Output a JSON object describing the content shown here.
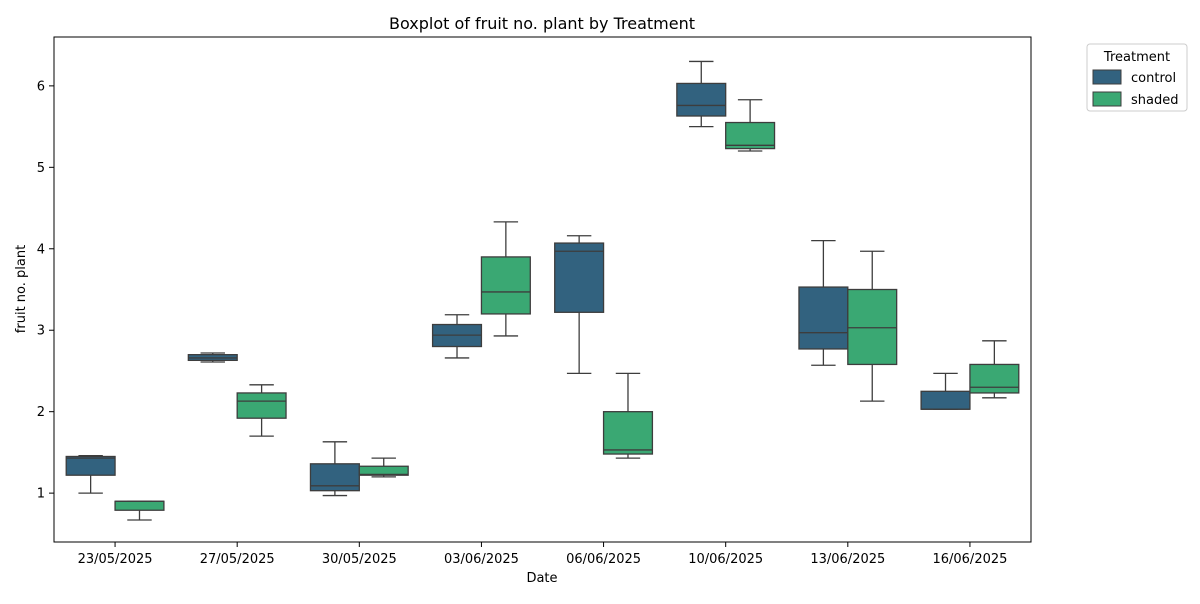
{
  "chart_data": {
    "type": "box",
    "title": "Boxplot of fruit no. plant by Treatment",
    "xlabel": "Date",
    "ylabel": "fruit no. plant",
    "ylim": [
      0.4,
      6.6
    ],
    "yticks": [
      1,
      2,
      3,
      4,
      5,
      6
    ],
    "categories": [
      "23/05/2025",
      "27/05/2025",
      "30/05/2025",
      "03/06/2025",
      "06/06/2025",
      "10/06/2025",
      "13/06/2025",
      "16/06/2025"
    ],
    "legend": {
      "title": "Treatment",
      "position": "outside-top-right"
    },
    "series": [
      {
        "name": "control",
        "color": "#32627f",
        "boxes": [
          {
            "whisker_low": 1.0,
            "q1": 1.22,
            "median": 1.43,
            "q3": 1.45,
            "whisker_high": 1.46
          },
          {
            "whisker_low": 2.61,
            "q1": 2.63,
            "median": 2.66,
            "q3": 2.7,
            "whisker_high": 2.72
          },
          {
            "whisker_low": 0.97,
            "q1": 1.03,
            "median": 1.09,
            "q3": 1.36,
            "whisker_high": 1.63
          },
          {
            "whisker_low": 2.66,
            "q1": 2.8,
            "median": 2.94,
            "q3": 3.07,
            "whisker_high": 3.19
          },
          {
            "whisker_low": 2.47,
            "q1": 3.22,
            "median": 3.97,
            "q3": 4.07,
            "whisker_high": 4.16
          },
          {
            "whisker_low": 5.5,
            "q1": 5.63,
            "median": 5.76,
            "q3": 6.03,
            "whisker_high": 6.3
          },
          {
            "whisker_low": 2.57,
            "q1": 2.77,
            "median": 2.97,
            "q3": 3.53,
            "whisker_high": 4.1
          },
          {
            "whisker_low": 2.03,
            "q1": 2.03,
            "median": 2.03,
            "q3": 2.25,
            "whisker_high": 2.47
          }
        ]
      },
      {
        "name": "shaded",
        "color": "#3aa873",
        "boxes": [
          {
            "whisker_low": 0.67,
            "q1": 0.79,
            "median": 0.9,
            "q3": 0.9,
            "whisker_high": 0.9
          },
          {
            "whisker_low": 1.7,
            "q1": 1.92,
            "median": 2.13,
            "q3": 2.23,
            "whisker_high": 2.33
          },
          {
            "whisker_low": 1.2,
            "q1": 1.22,
            "median": 1.23,
            "q3": 1.33,
            "whisker_high": 1.43
          },
          {
            "whisker_low": 2.93,
            "q1": 3.2,
            "median": 3.47,
            "q3": 3.9,
            "whisker_high": 4.33
          },
          {
            "whisker_low": 1.43,
            "q1": 1.48,
            "median": 1.53,
            "q3": 2.0,
            "whisker_high": 2.47
          },
          {
            "whisker_low": 5.2,
            "q1": 5.23,
            "median": 5.27,
            "q3": 5.55,
            "whisker_high": 5.83
          },
          {
            "whisker_low": 2.13,
            "q1": 2.58,
            "median": 3.03,
            "q3": 3.5,
            "whisker_high": 3.97
          },
          {
            "whisker_low": 2.17,
            "q1": 2.23,
            "median": 2.3,
            "q3": 2.58,
            "whisker_high": 2.87
          }
        ]
      }
    ]
  }
}
